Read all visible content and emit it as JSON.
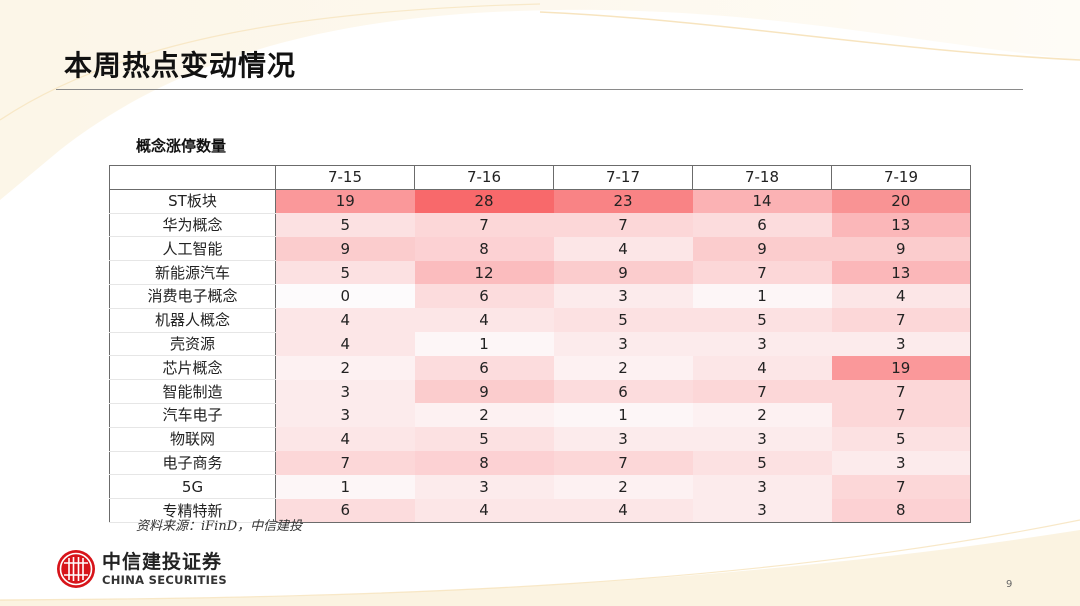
{
  "page": {
    "title": "本周热点变动情况",
    "subtitle": "概念涨停数量",
    "source": "资料来源：iFinD，中信建投",
    "page_number": "9"
  },
  "brand": {
    "name_cn": "中信建投证券",
    "name_en": "CHINA SECURITIES",
    "logo_color": "#d7141a"
  },
  "heatmap": {
    "min_color": "#fdfbfc",
    "max_color": "#f8696b",
    "min_value": 0,
    "max_value": 28
  },
  "chart_data": {
    "type": "heatmap",
    "title": "概念涨停数量",
    "columns": [
      "7-15",
      "7-16",
      "7-17",
      "7-18",
      "7-19"
    ],
    "rows": [
      {
        "label": "ST板块",
        "values": [
          19,
          28,
          23,
          14,
          20
        ]
      },
      {
        "label": "华为概念",
        "values": [
          5,
          7,
          7,
          6,
          13
        ]
      },
      {
        "label": "人工智能",
        "values": [
          9,
          8,
          4,
          9,
          9
        ]
      },
      {
        "label": "新能源汽车",
        "values": [
          5,
          12,
          9,
          7,
          13
        ]
      },
      {
        "label": "消费电子概念",
        "values": [
          0,
          6,
          3,
          1,
          4
        ]
      },
      {
        "label": "机器人概念",
        "values": [
          4,
          4,
          5,
          5,
          7
        ]
      },
      {
        "label": "壳资源",
        "values": [
          4,
          1,
          3,
          3,
          3
        ]
      },
      {
        "label": "芯片概念",
        "values": [
          2,
          6,
          2,
          4,
          19
        ]
      },
      {
        "label": "智能制造",
        "values": [
          3,
          9,
          6,
          7,
          7
        ]
      },
      {
        "label": "汽车电子",
        "values": [
          3,
          2,
          1,
          2,
          7
        ]
      },
      {
        "label": "物联网",
        "values": [
          4,
          5,
          3,
          3,
          5
        ]
      },
      {
        "label": "电子商务",
        "values": [
          7,
          8,
          7,
          5,
          3
        ]
      },
      {
        "label": "5G",
        "values": [
          1,
          3,
          2,
          3,
          7
        ]
      },
      {
        "label": "专精特新",
        "values": [
          6,
          4,
          4,
          3,
          8
        ]
      }
    ],
    "source": "资料来源：iFinD，中信建投"
  }
}
